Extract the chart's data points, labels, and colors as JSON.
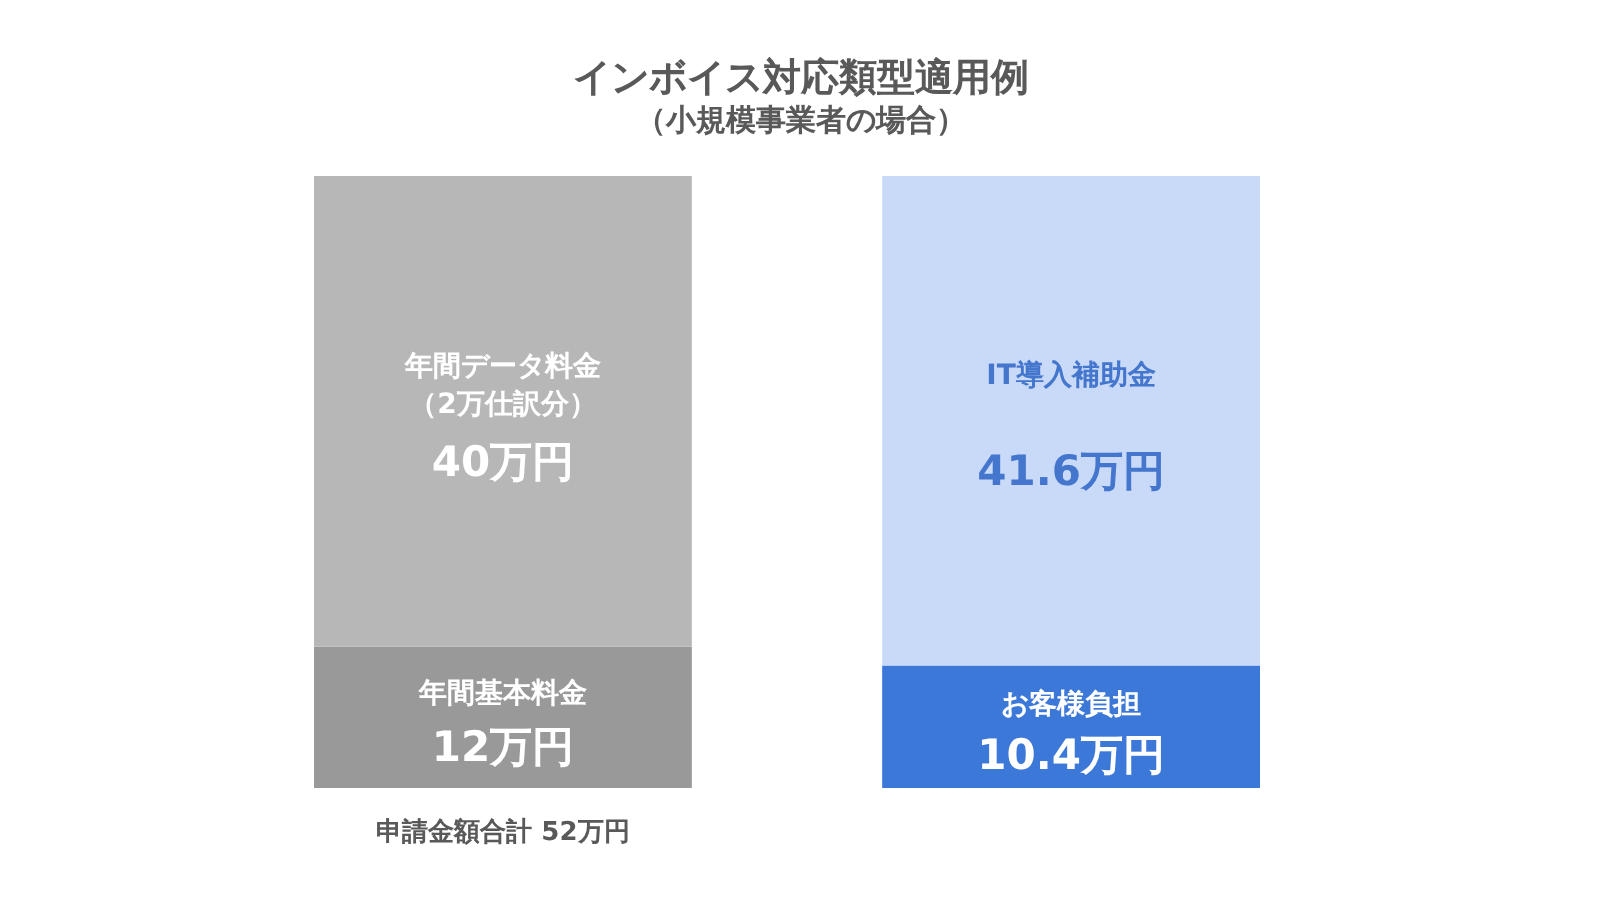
{
  "chart_data": {
    "type": "bar",
    "title": "インボイス対応類型適用例",
    "subtitle": "（小規模事業者の場合）",
    "categories": [
      null,
      null
    ],
    "stacked": true,
    "series": [
      {
        "name": "年間基本料金",
        "color": "#999999",
        "values": [
          12,
          null
        ],
        "value_labels": [
          "12万円",
          null
        ]
      },
      {
        "name": "お客様負担",
        "color": "#3c78d8",
        "values": [
          null,
          10.4
        ],
        "value_labels": [
          null,
          "10.4万円"
        ]
      },
      {
        "name": "年間データ料金（2万仕訳分）",
        "color": "#b7b7b7",
        "values": [
          40,
          null
        ],
        "value_labels": [
          "40万円",
          null
        ]
      },
      {
        "name": "IT導入補助金",
        "color": "#c9daf8",
        "values": [
          null,
          41.6
        ],
        "value_labels": [
          null,
          "41.6万円"
        ]
      }
    ],
    "annotations": [
      "申請金額合計 52万円"
    ]
  }
}
